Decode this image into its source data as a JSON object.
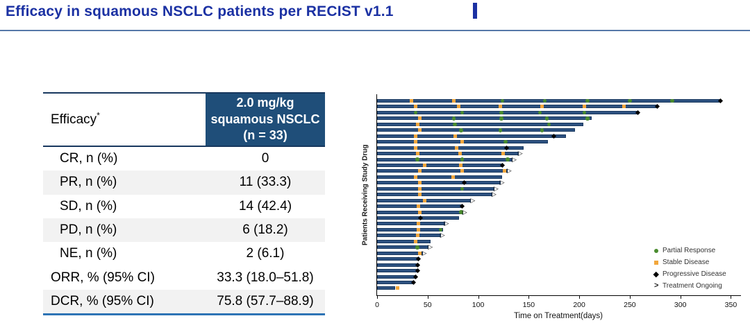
{
  "title": {
    "text": "Efficacy in squamous NSCLC patients per RECIST v1.1"
  },
  "colors": {
    "title_blue": "#1b31a3",
    "header_navy": "#1f4e79",
    "row_shade": "#f2f2f2",
    "bottom_rule_blue": "#2e74b5",
    "bar_fill": "#2d5180",
    "bar_border": "#1b3a60",
    "pr_green": "#4a8c2f",
    "sd_orange": "#f2a73d",
    "pd_black": "#000000"
  },
  "table": {
    "header_left": "Efficacy",
    "header_left_superscript": "*",
    "header_right_lines": [
      "2.0 mg/kg",
      "squamous NSCLC",
      "(n = 33)"
    ],
    "rows": [
      {
        "label": "CR, n (%)",
        "value": "0",
        "shaded": false,
        "indent": true
      },
      {
        "label": "PR, n (%)",
        "value": "11 (33.3)",
        "shaded": true,
        "indent": true
      },
      {
        "label": "SD, n (%)",
        "value": "14 (42.4)",
        "shaded": false,
        "indent": true
      },
      {
        "label": "PD, n (%)",
        "value": "6 (18.2)",
        "shaded": true,
        "indent": true
      },
      {
        "label": "NE, n (%)",
        "value": "2 (6.1)",
        "shaded": false,
        "indent": true
      },
      {
        "label": "ORR, % (95% CI)",
        "value": "33.3 (18.0–51.8)",
        "shaded": false,
        "indent": false
      },
      {
        "label": "DCR, % (95% CI)",
        "value": "75.8 (57.7–88.9)",
        "shaded": true,
        "indent": false
      }
    ]
  },
  "chart_data": {
    "type": "bar",
    "subtype": "horizontal-swimmer",
    "title": "",
    "xlabel": "Time on Treatment(days)",
    "ylabel": "Patients Receiving Study Drug",
    "xlim": [
      0,
      360
    ],
    "xticks": [
      0,
      50,
      100,
      150,
      200,
      250,
      300,
      350
    ],
    "grid": false,
    "legend_position": "right-middle",
    "legend": [
      {
        "key": "pr",
        "label": "Partial Response",
        "marker": "circle",
        "color": "#4a8c2f"
      },
      {
        "key": "sd",
        "label": "Stable Disease",
        "marker": "square",
        "color": "#f2a73d"
      },
      {
        "key": "pd",
        "label": "Progressive Disease",
        "marker": "diamond",
        "color": "#000000"
      },
      {
        "key": "ongoing",
        "label": "Treatment Ongoing",
        "marker": "arrow",
        "color": "#000000"
      }
    ],
    "patients": [
      {
        "days": 340,
        "ongoing": false,
        "markers": [
          {
            "day": 34,
            "type": "sd"
          },
          {
            "day": 76,
            "type": "sd"
          },
          {
            "day": 124,
            "type": "pr"
          },
          {
            "day": 166,
            "type": "pr"
          },
          {
            "day": 208,
            "type": "pr"
          },
          {
            "day": 250,
            "type": "pr"
          },
          {
            "day": 292,
            "type": "pr"
          },
          {
            "day": 340,
            "type": "pd"
          }
        ]
      },
      {
        "days": 277,
        "ongoing": false,
        "markers": [
          {
            "day": 38,
            "type": "sd"
          },
          {
            "day": 81,
            "type": "sd"
          },
          {
            "day": 122,
            "type": "sd"
          },
          {
            "day": 163,
            "type": "sd"
          },
          {
            "day": 205,
            "type": "sd"
          },
          {
            "day": 244,
            "type": "sd"
          },
          {
            "day": 277,
            "type": "pd"
          }
        ]
      },
      {
        "days": 258,
        "ongoing": false,
        "markers": [
          {
            "day": 38,
            "type": "pr"
          },
          {
            "day": 84,
            "type": "pr"
          },
          {
            "day": 123,
            "type": "pr"
          },
          {
            "day": 161,
            "type": "pr"
          },
          {
            "day": 205,
            "type": "pr"
          },
          {
            "day": 258,
            "type": "pd"
          }
        ]
      },
      {
        "days": 212,
        "ongoing": false,
        "markers": [
          {
            "day": 42,
            "type": "sd"
          },
          {
            "day": 76,
            "type": "pr"
          },
          {
            "day": 123,
            "type": "pr"
          },
          {
            "day": 168,
            "type": "pr"
          },
          {
            "day": 208,
            "type": "pr"
          }
        ]
      },
      {
        "days": 204,
        "ongoing": false,
        "markers": [
          {
            "day": 40,
            "type": "sd"
          },
          {
            "day": 77,
            "type": "pr"
          },
          {
            "day": 170,
            "type": "pr"
          }
        ]
      },
      {
        "days": 196,
        "ongoing": false,
        "markers": [
          {
            "day": 42,
            "type": "sd"
          },
          {
            "day": 83,
            "type": "pr"
          },
          {
            "day": 122,
            "type": "pr"
          },
          {
            "day": 163,
            "type": "pr"
          }
        ]
      },
      {
        "days": 187,
        "ongoing": false,
        "markers": [
          {
            "day": 38,
            "type": "sd"
          },
          {
            "day": 77,
            "type": "sd"
          },
          {
            "day": 175,
            "type": "pd"
          }
        ]
      },
      {
        "days": 169,
        "ongoing": false,
        "markers": [
          {
            "day": 38,
            "type": "sd"
          },
          {
            "day": 84,
            "type": "sd"
          },
          {
            "day": 127,
            "type": "pr"
          }
        ]
      },
      {
        "days": 145,
        "ongoing": false,
        "markers": [
          {
            "day": 38,
            "type": "sd"
          },
          {
            "day": 79,
            "type": "sd"
          },
          {
            "day": 128,
            "type": "pd"
          }
        ]
      },
      {
        "days": 140,
        "ongoing": true,
        "markers": [
          {
            "day": 40,
            "type": "sd"
          },
          {
            "day": 82,
            "type": "sd"
          },
          {
            "day": 125,
            "type": "sd"
          }
        ]
      },
      {
        "days": 134,
        "ongoing": true,
        "markers": [
          {
            "day": 40,
            "type": "pr"
          },
          {
            "day": 84,
            "type": "pr"
          },
          {
            "day": 129,
            "type": "pr"
          }
        ]
      },
      {
        "days": 124,
        "ongoing": false,
        "markers": [
          {
            "day": 47,
            "type": "sd"
          },
          {
            "day": 83,
            "type": "sd"
          },
          {
            "day": 124,
            "type": "pd"
          }
        ]
      },
      {
        "days": 129,
        "ongoing": true,
        "markers": [
          {
            "day": 42,
            "type": "sd"
          },
          {
            "day": 84,
            "type": "sd"
          },
          {
            "day": 126,
            "type": "sd"
          }
        ]
      },
      {
        "days": 124,
        "ongoing": false,
        "markers": [
          {
            "day": 38,
            "type": "sd"
          },
          {
            "day": 75,
            "type": "sd"
          }
        ]
      },
      {
        "days": 122,
        "ongoing": true,
        "markers": [
          {
            "day": 42,
            "type": "sd"
          },
          {
            "day": 86,
            "type": "pd"
          }
        ]
      },
      {
        "days": 116,
        "ongoing": true,
        "markers": [
          {
            "day": 42,
            "type": "sd"
          },
          {
            "day": 84,
            "type": "pr"
          }
        ]
      },
      {
        "days": 114,
        "ongoing": true,
        "markers": [
          {
            "day": 42,
            "type": "sd"
          }
        ]
      },
      {
        "days": 93,
        "ongoing": true,
        "markers": [
          {
            "day": 47,
            "type": "sd"
          }
        ]
      },
      {
        "days": 84,
        "ongoing": false,
        "markers": [
          {
            "day": 41,
            "type": "sd"
          },
          {
            "day": 84,
            "type": "pd"
          }
        ]
      },
      {
        "days": 85,
        "ongoing": true,
        "markers": [
          {
            "day": 42,
            "type": "sd"
          },
          {
            "day": 83,
            "type": "pr"
          }
        ]
      },
      {
        "days": 81,
        "ongoing": false,
        "markers": [
          {
            "day": 43,
            "type": "pd"
          }
        ]
      },
      {
        "days": 67,
        "ongoing": true,
        "markers": [
          {
            "day": 41,
            "type": "sd"
          }
        ]
      },
      {
        "days": 65,
        "ongoing": false,
        "markers": [
          {
            "day": 41,
            "type": "sd"
          },
          {
            "day": 63,
            "type": "pr"
          }
        ]
      },
      {
        "days": 63,
        "ongoing": true,
        "markers": [
          {
            "day": 40,
            "type": "sd"
          }
        ]
      },
      {
        "days": 53,
        "ongoing": false,
        "markers": [
          {
            "day": 38,
            "type": "sd"
          }
        ]
      },
      {
        "days": 51,
        "ongoing": true,
        "markers": [
          {
            "day": 40,
            "type": "pr"
          }
        ]
      },
      {
        "days": 45,
        "ongoing": true,
        "markers": [
          {
            "day": 42,
            "type": "sd"
          }
        ]
      },
      {
        "days": 41,
        "ongoing": false,
        "markers": [
          {
            "day": 41,
            "type": "pd"
          }
        ]
      },
      {
        "days": 40,
        "ongoing": false,
        "markers": [
          {
            "day": 40,
            "type": "pd"
          }
        ]
      },
      {
        "days": 40,
        "ongoing": false,
        "markers": [
          {
            "day": 40,
            "type": "pd"
          }
        ]
      },
      {
        "days": 38,
        "ongoing": false,
        "markers": [
          {
            "day": 38,
            "type": "pd"
          }
        ]
      },
      {
        "days": 36,
        "ongoing": false,
        "markers": [
          {
            "day": 36,
            "type": "pd"
          }
        ]
      },
      {
        "days": 18,
        "ongoing": false,
        "markers": [
          {
            "day": 20,
            "type": "sd"
          }
        ]
      }
    ]
  }
}
